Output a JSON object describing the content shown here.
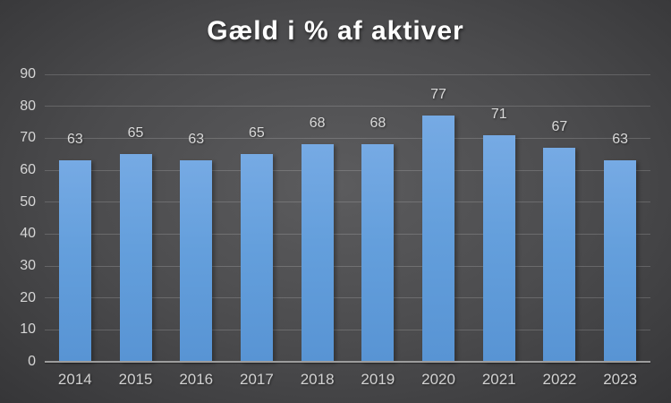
{
  "chart_data": {
    "type": "bar",
    "title": "Gæld i % af aktiver",
    "categories": [
      "2014",
      "2015",
      "2016",
      "2017",
      "2018",
      "2019",
      "2020",
      "2021",
      "2022",
      "2023"
    ],
    "values": [
      63,
      65,
      63,
      65,
      68,
      68,
      77,
      71,
      67,
      63
    ],
    "xlabel": "",
    "ylabel": "",
    "ylim": [
      0,
      90
    ],
    "ytick_step": 10,
    "yticks": [
      0,
      10,
      20,
      30,
      40,
      50,
      60,
      70,
      80,
      90
    ],
    "grid": true,
    "legend": "none",
    "data_labels": true,
    "colors": {
      "bar_fill_top": "#76aae4",
      "bar_fill_bottom": "#5894d4",
      "background_center": "#5c5c5e",
      "background_edge": "#272729",
      "gridline": "rgba(255,255,255,0.17)",
      "axis_line": "#9d9d9d",
      "tick_label": "#d6d6d6",
      "data_label": "#d9d9d9",
      "title": "#ffffff"
    }
  }
}
